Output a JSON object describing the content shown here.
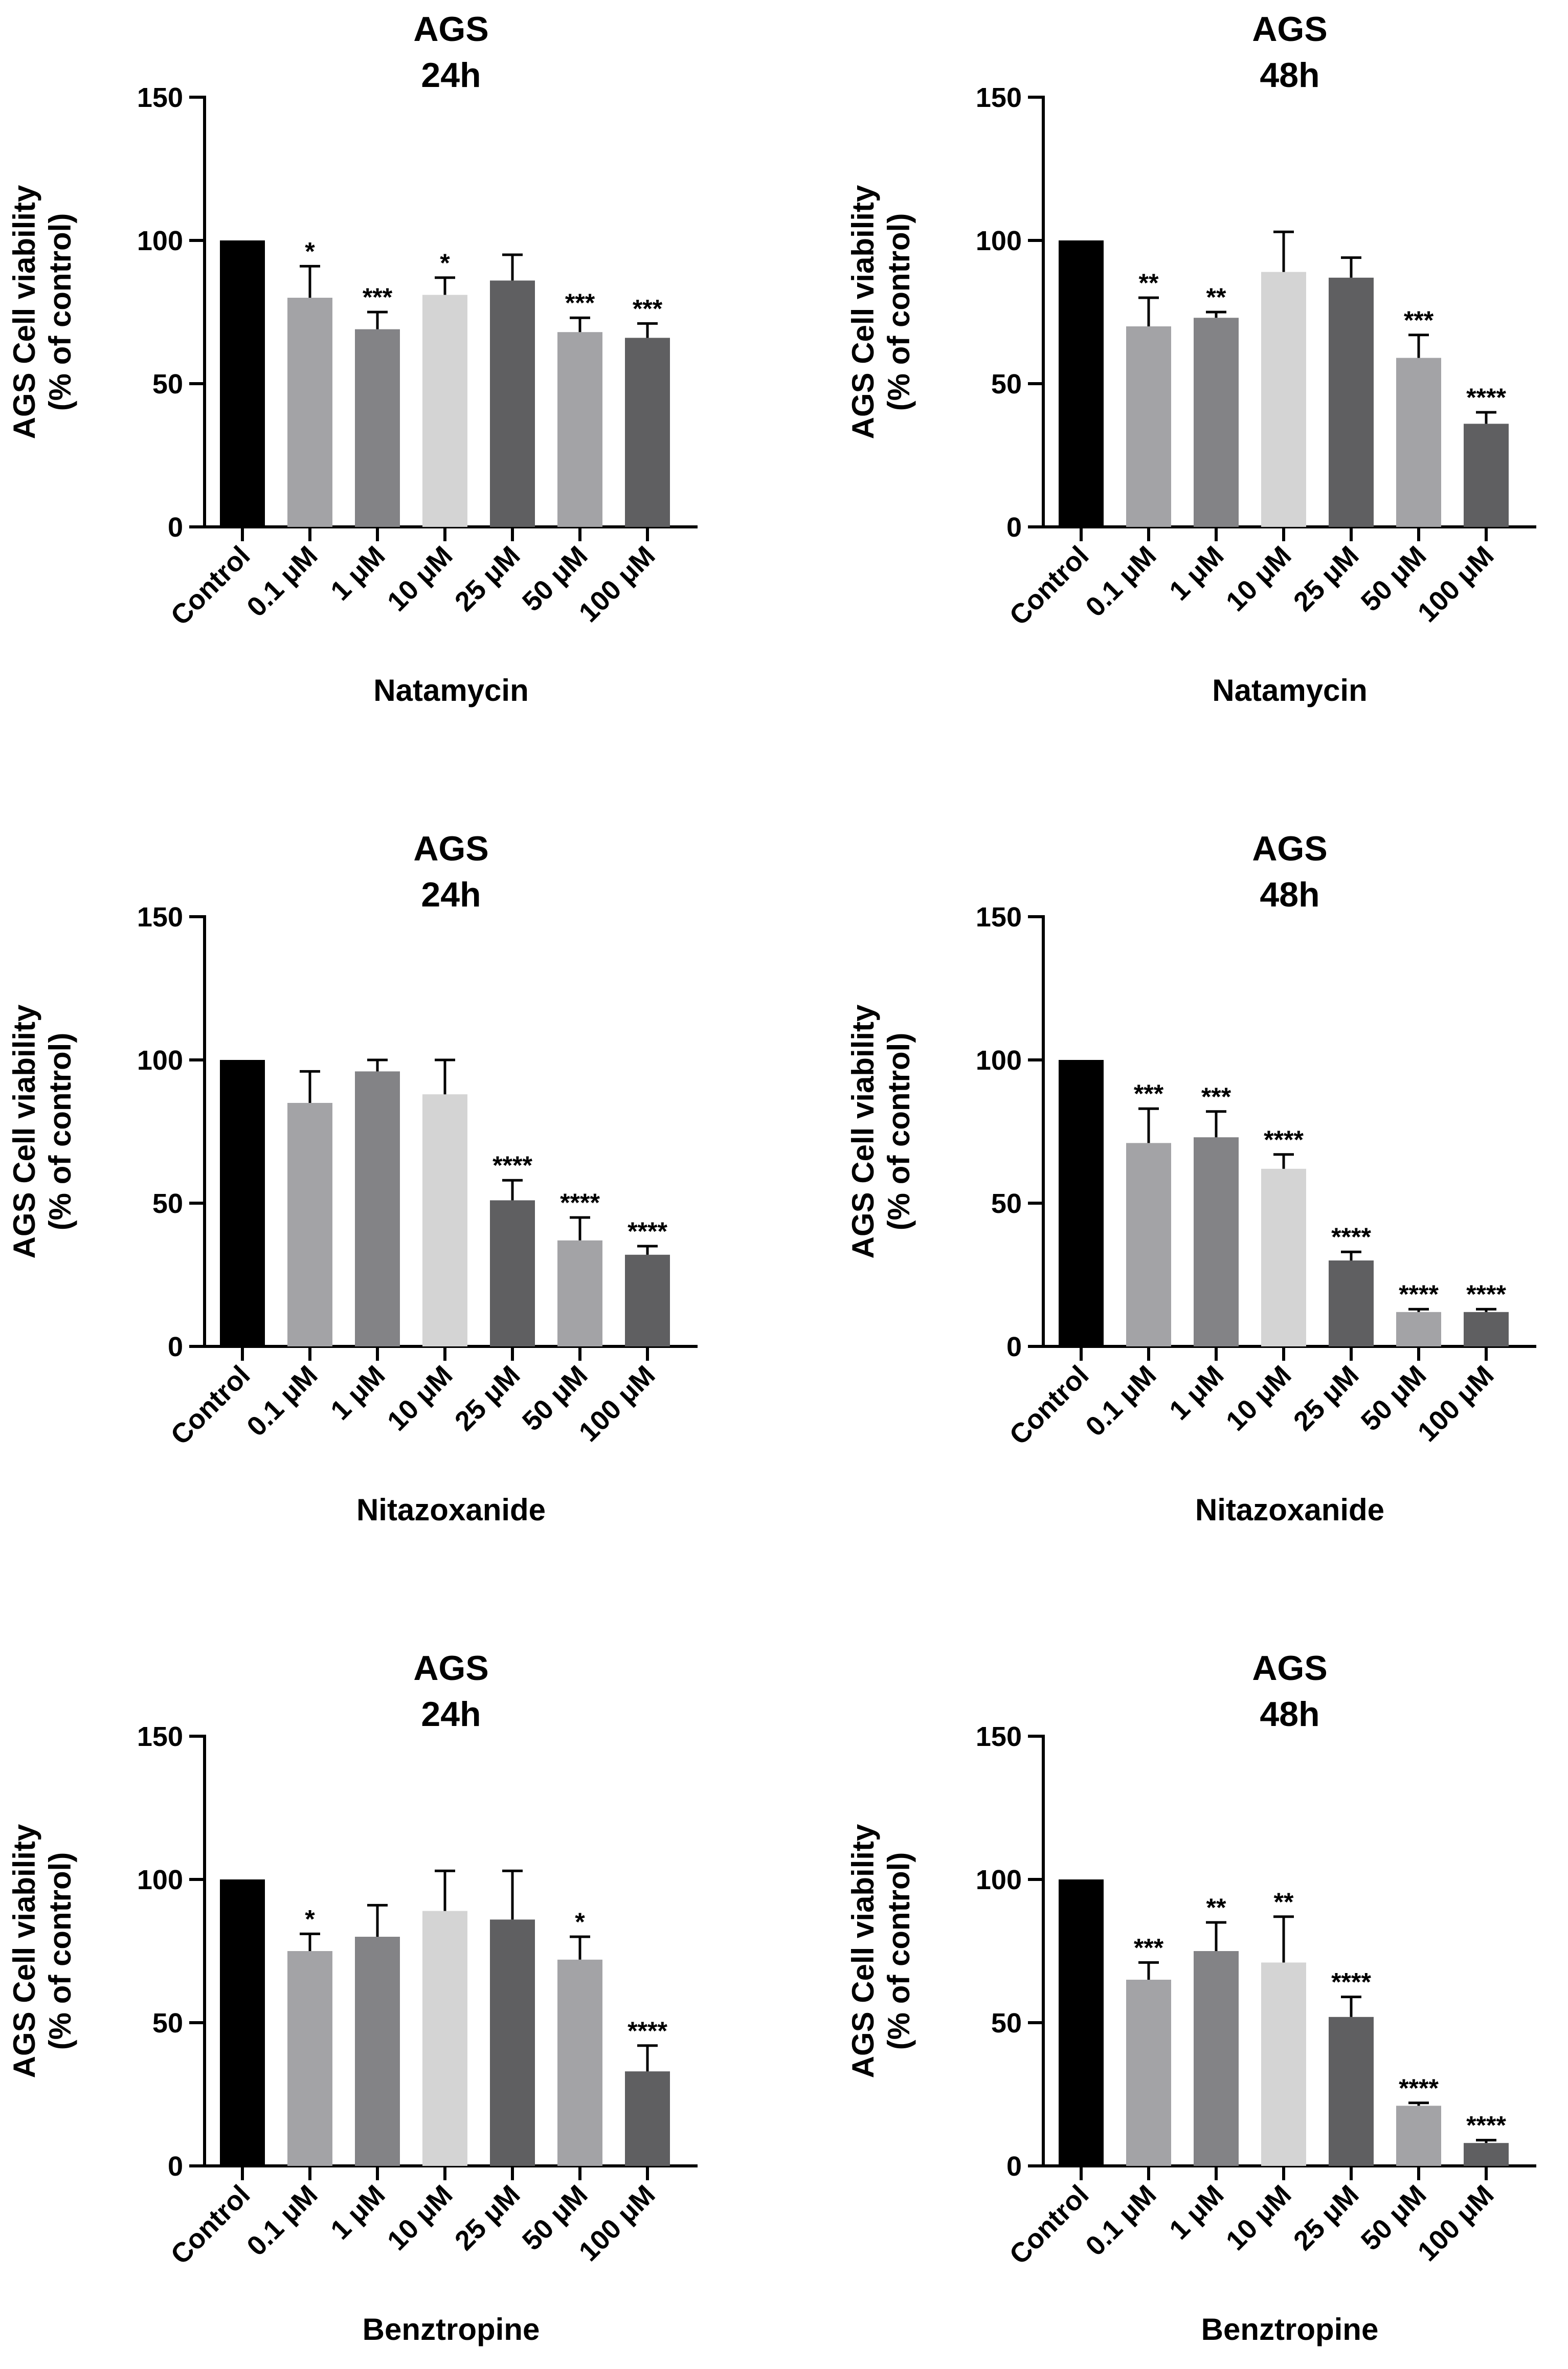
{
  "figure": {
    "colors": {
      "axis": "#000000",
      "error_bar": "#000000",
      "bars": [
        "#000000",
        "#a3a3a6",
        "#838386",
        "#d4d4d4",
        "#5f5f61",
        "#a3a3a6",
        "#5f5f61"
      ]
    }
  },
  "chart_data": [
    {
      "type": "bar",
      "title": [
        "AGS",
        "24h"
      ],
      "xlabel": "Natamycin",
      "ylabel": [
        "AGS Cell viability",
        "(% of control)"
      ],
      "ylim": [
        0,
        150
      ],
      "yticks": [
        "0",
        "50",
        "100",
        "150"
      ],
      "categories": [
        "Control",
        "0.1 μM",
        "1 μM",
        "10 μM",
        "25 μM",
        "50 μM",
        "100 μM"
      ],
      "values": [
        100,
        80,
        69,
        81,
        86,
        68,
        66
      ],
      "errors": [
        0,
        11,
        6,
        6,
        9,
        5,
        5
      ],
      "significance": [
        "",
        "*",
        "***",
        "*",
        "",
        "***",
        "***"
      ]
    },
    {
      "type": "bar",
      "title": [
        "AGS",
        "48h"
      ],
      "xlabel": "Natamycin",
      "ylabel": [
        "AGS Cell viability",
        "(% of control)"
      ],
      "ylim": [
        0,
        150
      ],
      "yticks": [
        "0",
        "50",
        "100",
        "150"
      ],
      "categories": [
        "Control",
        "0.1 μM",
        "1 μM",
        "10 μM",
        "25 μM",
        "50 μM",
        "100 μM"
      ],
      "values": [
        100,
        70,
        73,
        89,
        87,
        59,
        36
      ],
      "errors": [
        0,
        10,
        2,
        14,
        7,
        8,
        4
      ],
      "significance": [
        "",
        "**",
        "**",
        "",
        "",
        "***",
        "****"
      ]
    },
    {
      "type": "bar",
      "title": [
        "AGS",
        "24h"
      ],
      "xlabel": "Nitazoxanide",
      "ylabel": [
        "AGS Cell viability",
        "(% of control)"
      ],
      "ylim": [
        0,
        150
      ],
      "yticks": [
        "0",
        "50",
        "100",
        "150"
      ],
      "categories": [
        "Control",
        "0.1 μM",
        "1 μM",
        "10 μM",
        "25 μM",
        "50 μM",
        "100 μM"
      ],
      "values": [
        100,
        85,
        96,
        88,
        51,
        37,
        32
      ],
      "errors": [
        0,
        11,
        4,
        12,
        7,
        8,
        3
      ],
      "significance": [
        "",
        "",
        "",
        "",
        "****",
        "****",
        "****"
      ]
    },
    {
      "type": "bar",
      "title": [
        "AGS",
        "48h"
      ],
      "xlabel": "Nitazoxanide",
      "ylabel": [
        "AGS Cell viability",
        "(% of control)"
      ],
      "ylim": [
        0,
        150
      ],
      "yticks": [
        "0",
        "50",
        "100",
        "150"
      ],
      "categories": [
        "Control",
        "0.1 μM",
        "1 μM",
        "10 μM",
        "25 μM",
        "50 μM",
        "100 μM"
      ],
      "values": [
        100,
        71,
        73,
        62,
        30,
        12,
        12
      ],
      "errors": [
        0,
        12,
        9,
        5,
        3,
        1,
        1
      ],
      "significance": [
        "",
        "***",
        "***",
        "****",
        "****",
        "****",
        "****"
      ]
    },
    {
      "type": "bar",
      "title": [
        "AGS",
        "24h"
      ],
      "xlabel": "Benztropine",
      "ylabel": [
        "AGS Cell viability",
        "(% of control)"
      ],
      "ylim": [
        0,
        150
      ],
      "yticks": [
        "0",
        "50",
        "100",
        "150"
      ],
      "categories": [
        "Control",
        "0.1 μM",
        "1 μM",
        "10 μM",
        "25 μM",
        "50 μM",
        "100 μM"
      ],
      "values": [
        100,
        75,
        80,
        89,
        86,
        72,
        33
      ],
      "errors": [
        0,
        6,
        11,
        14,
        17,
        8,
        9
      ],
      "significance": [
        "",
        "*",
        "",
        "",
        "",
        "*",
        "****"
      ]
    },
    {
      "type": "bar",
      "title": [
        "AGS",
        "48h"
      ],
      "xlabel": "Benztropine",
      "ylabel": [
        "AGS Cell viability",
        "(% of control)"
      ],
      "ylim": [
        0,
        150
      ],
      "yticks": [
        "0",
        "50",
        "100",
        "150"
      ],
      "categories": [
        "Control",
        "0.1 μM",
        "1 μM",
        "10 μM",
        "25 μM",
        "50 μM",
        "100 μM"
      ],
      "values": [
        100,
        65,
        75,
        71,
        52,
        21,
        8
      ],
      "errors": [
        0,
        6,
        10,
        16,
        7,
        1,
        1
      ],
      "significance": [
        "",
        "***",
        "**",
        "**",
        "****",
        "****",
        "****"
      ]
    }
  ]
}
